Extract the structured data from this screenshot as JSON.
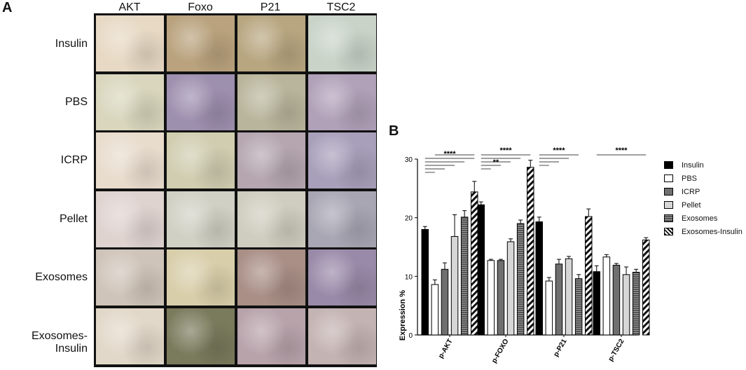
{
  "panel_a": {
    "label": "A",
    "columns": [
      "AKT",
      "Foxo",
      "P21",
      "TSC2"
    ],
    "rows": [
      "Insulin",
      "PBS",
      "ICRP",
      "Pellet",
      "Exosomes",
      "Exosomes-Insulin"
    ],
    "tile_colors": [
      [
        "#e7d9c4",
        "#b9a27d",
        "#b8a680",
        "#c9d3c8"
      ],
      [
        "#d9d6bd",
        "#9d8fae",
        "#b9b59c",
        "#b0a0b8"
      ],
      [
        "#e8dccd",
        "#d0cdb0",
        "#b5a6b0",
        "#a89fba"
      ],
      [
        "#dfd3d0",
        "#d0d0c4",
        "#cfcdbf",
        "#a8a6b3"
      ],
      [
        "#cfc4b9",
        "#d8ceaa",
        "#a98f86",
        "#9a8aa9"
      ],
      [
        "#e2d8c9",
        "#7a7a5c",
        "#b8a3ab",
        "#c3b3b2"
      ]
    ]
  },
  "panel_b": {
    "label": "B"
  },
  "chart_data": {
    "type": "bar",
    "categories": [
      "p-AKT",
      "p-FOXO",
      "p-P21",
      "p-TSC2"
    ],
    "ylabel": "Expression %",
    "ylim": [
      0,
      30
    ],
    "yticks": [
      "0",
      "10",
      "20",
      "30"
    ],
    "series": [
      {
        "name": "Insulin",
        "values": [
          18.0,
          22.2,
          19.3,
          10.8
        ],
        "errors": [
          0.5,
          0.5,
          0.8,
          1.0
        ],
        "fill": "solid-black"
      },
      {
        "name": "PBS",
        "values": [
          8.6,
          12.7,
          9.2,
          13.3
        ],
        "errors": [
          0.8,
          0.2,
          0.6,
          0.4
        ],
        "fill": "white"
      },
      {
        "name": "ICRP",
        "values": [
          11.2,
          12.7,
          12.1,
          11.9
        ],
        "errors": [
          1.1,
          0.2,
          0.8,
          0.3
        ],
        "fill": "dark-gray"
      },
      {
        "name": "Pellet",
        "values": [
          16.8,
          15.9,
          13.0,
          10.3
        ],
        "errors": [
          3.7,
          0.5,
          0.4,
          1.3
        ],
        "fill": "light-gray"
      },
      {
        "name": "Exosomes",
        "values": [
          20.1,
          19.0,
          9.6,
          10.7
        ],
        "errors": [
          1.1,
          0.6,
          0.7,
          0.5
        ],
        "fill": "striped-gray"
      },
      {
        "name": "Exosomes-Insulin",
        "values": [
          24.4,
          28.6,
          20.2,
          16.2
        ],
        "errors": [
          1.8,
          1.2,
          1.3,
          0.4
        ],
        "fill": "diagonal-hatch"
      }
    ],
    "significance": [
      {
        "category": "p-AKT",
        "label": "****",
        "brackets": [
          [
            0,
            1
          ],
          [
            0,
            2
          ],
          [
            0,
            3
          ],
          [
            0,
            4
          ],
          [
            0,
            5
          ],
          [
            1,
            5
          ]
        ],
        "label_bracket": 4
      },
      {
        "category": "p-FOXO",
        "label": "****",
        "brackets": [
          [
            0,
            1
          ],
          [
            0,
            2
          ],
          [
            0,
            3
          ],
          [
            0,
            4
          ],
          [
            0,
            5
          ]
        ],
        "label_bracket": 4
      },
      {
        "category": "p-FOXO",
        "label": "**",
        "brackets": [],
        "label_bracket": 2
      },
      {
        "category": "p-P21",
        "label": "****",
        "brackets": [
          [
            0,
            1
          ],
          [
            0,
            2
          ],
          [
            0,
            3
          ],
          [
            0,
            4
          ]
        ],
        "label_bracket": 3
      },
      {
        "category": "p-TSC2",
        "label": "****",
        "brackets": [
          [
            0,
            5
          ]
        ],
        "label_bracket": 0
      }
    ]
  }
}
